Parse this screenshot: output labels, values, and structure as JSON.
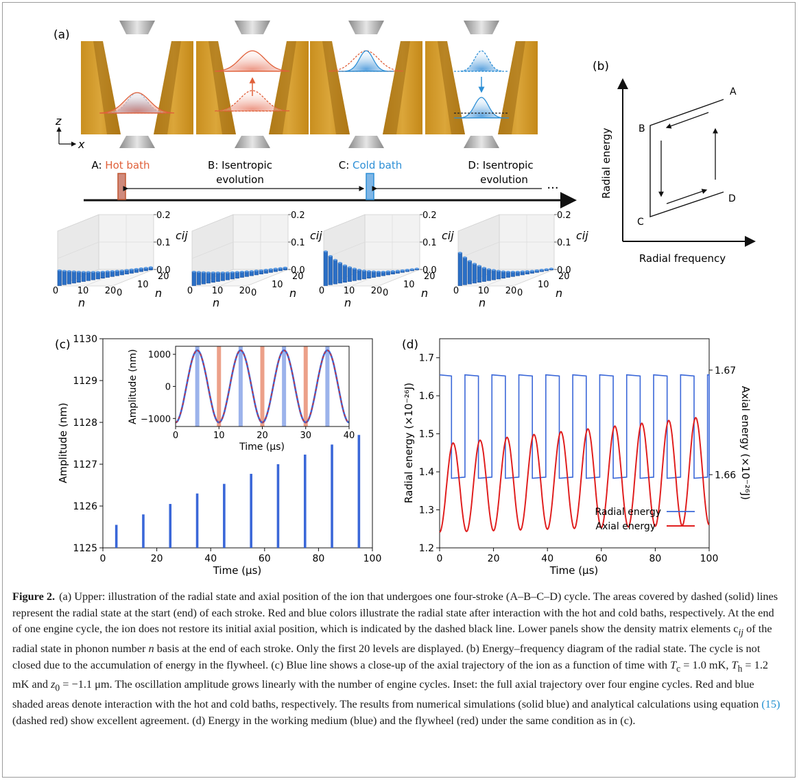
{
  "panels": {
    "a": "(a)",
    "b": "(b)",
    "c": "(c)",
    "d": "(d)"
  },
  "panel_a": {
    "axis_z": "z",
    "axis_x": "x",
    "strokes": [
      {
        "prefix": "A: ",
        "name": "Hot bath",
        "color": "#e0603a"
      },
      {
        "line1": "B: Isentropic",
        "line2": "evolution"
      },
      {
        "prefix": "C: ",
        "name": "Cold bath",
        "color": "#2d8fd6"
      },
      {
        "line1": "D: Isentropic",
        "line2": "evolution"
      }
    ],
    "ellipsis": "···",
    "histogram": {
      "zticks": [
        "0.0",
        "0.1",
        "0.2"
      ],
      "zlabel": "c_ij",
      "xticks": [
        "0",
        "10",
        "20"
      ],
      "xlabel": "n",
      "yticks": [
        "0",
        "10",
        "20"
      ],
      "ylabel": "n",
      "diagonals": [
        [
          0.056,
          0.051,
          0.047,
          0.043,
          0.039,
          0.035,
          0.032,
          0.029,
          0.026,
          0.024,
          0.022,
          0.02,
          0.018,
          0.016,
          0.015,
          0.014,
          0.013,
          0.012,
          0.011,
          0.01
        ],
        [
          0.051,
          0.047,
          0.043,
          0.039,
          0.036,
          0.033,
          0.03,
          0.027,
          0.025,
          0.023,
          0.021,
          0.019,
          0.017,
          0.016,
          0.014,
          0.013,
          0.012,
          0.011,
          0.01,
          0.009
        ],
        [
          0.125,
          0.105,
          0.088,
          0.074,
          0.062,
          0.052,
          0.044,
          0.037,
          0.031,
          0.026,
          0.022,
          0.018,
          0.015,
          0.013,
          0.011,
          0.009,
          0.008,
          0.007,
          0.006,
          0.005
        ],
        [
          0.12,
          0.1,
          0.084,
          0.071,
          0.06,
          0.05,
          0.042,
          0.036,
          0.03,
          0.025,
          0.021,
          0.018,
          0.015,
          0.013,
          0.011,
          0.009,
          0.008,
          0.007,
          0.006,
          0.005
        ]
      ]
    }
  },
  "panel_b": {
    "ylabel": "Radial energy",
    "xlabel": "Radial frequency",
    "corners": {
      "A": "A",
      "B": "B",
      "C": "C",
      "D": "D"
    }
  },
  "chart_data": [
    {
      "type": "bar",
      "panel": "c",
      "xlabel": "Time (μs)",
      "ylabel": "Amplitude (nm)",
      "xlim": [
        0,
        100
      ],
      "ylim": [
        1125,
        1130
      ],
      "xticks": [
        0,
        20,
        40,
        60,
        80,
        100
      ],
      "yticks": [
        1125,
        1126,
        1127,
        1128,
        1129,
        1130
      ],
      "x": [
        5,
        15,
        25,
        35,
        45,
        55,
        65,
        75,
        85,
        95
      ],
      "values": [
        1125.55,
        1125.8,
        1126.05,
        1126.3,
        1126.53,
        1126.77,
        1127.0,
        1127.23,
        1127.47,
        1127.7
      ],
      "color": "#3a67d8",
      "inset": {
        "type": "line",
        "xlabel": "Time (μs)",
        "ylabel": "Amplitude (nm)",
        "xlim": [
          0,
          40
        ],
        "ylim": [
          -1250,
          1250
        ],
        "xticks": [
          0,
          10,
          20,
          30,
          40
        ],
        "yticks": [
          -1000,
          0,
          1000
        ],
        "period": 10,
        "amplitude": 1126,
        "hot_bath_times": [
          10,
          20,
          30
        ],
        "cold_bath_times": [
          5,
          15,
          25,
          35
        ],
        "series": [
          {
            "style": "solid",
            "color": "#3a67d8"
          },
          {
            "style": "dashed",
            "color": "#d83030"
          }
        ]
      }
    },
    {
      "type": "line",
      "panel": "d",
      "xlabel": "Time (μs)",
      "ylabel": "Radial energy (×10⁻²⁶J)",
      "ylabel2": "Axial energy (×10⁻²⁶J)",
      "xlim": [
        0,
        100
      ],
      "ylim": [
        1.2,
        1.75
      ],
      "ylim2": [
        1.653,
        1.673
      ],
      "xticks": [
        0,
        20,
        40,
        60,
        80,
        100
      ],
      "yticks": [
        1.2,
        1.3,
        1.4,
        1.5,
        1.6,
        1.7
      ],
      "yticks2": [
        1.66,
        1.67
      ],
      "series": [
        {
          "name": "Radial energy",
          "color": "#3a67d8",
          "high": 1.655,
          "low": 1.383,
          "switch_high": [
            5,
            15,
            25,
            35,
            45,
            55,
            65,
            75,
            85,
            95
          ],
          "switch_low": [
            0,
            10,
            20,
            30,
            40,
            50,
            60,
            70,
            80,
            90
          ]
        },
        {
          "name": "Axial energy",
          "color": "#e01e1e",
          "start": 1.6545,
          "mean_rise_per_10us": 0.00017,
          "oscillation_growth": 0.00033
        }
      ]
    }
  ],
  "caption": {
    "label": "Figure 2.",
    "text": "(a) Upper: illustration of the radial state and axial position of the ion that undergoes one four-stroke (A–B–C–D) cycle. The areas covered by dashed (solid) lines represent the radial state at the start (end) of each stroke. Red and blue colors illustrate the radial state after interaction with the hot and cold baths, respectively. At the end of one engine cycle, the ion does not restore its initial axial position, which is indicated by the dashed black line. Lower panels show the density matrix elements c",
    "sub_ij": "ij",
    "text2": " of the radial state in phonon number ",
    "n": "n",
    "text3": " basis at the end of each stroke. Only the first 20 levels are displayed. (b) Energy–frequency diagram of the radial state. The cycle is not closed due to the accumulation of energy in the flywheel. (c) Blue line shows a close-up of the axial trajectory of the ion as a function of time with ",
    "tc": "T",
    "tc_sub": "c",
    "tc_val": " = 1.0 mK, ",
    "th": "T",
    "th_sub": "h",
    "th_val": " = 1.2 mK and ",
    "z0": "z",
    "z0_sub": "0",
    "z0_val": " = −1.1 μm. The oscillation amplitude grows linearly with the number of engine cycles. Inset: the full axial trajectory over four engine cycles. Red and blue shaded areas denote interaction with the hot and cold baths, respectively. The results from numerical simulations (solid blue) and analytical calculations using equation ",
    "eq": "(15)",
    "text4": " (dashed red) show excellent agreement. (d) Energy in the working medium (blue) and the flywheel (red) under the same condition as in (c)."
  }
}
